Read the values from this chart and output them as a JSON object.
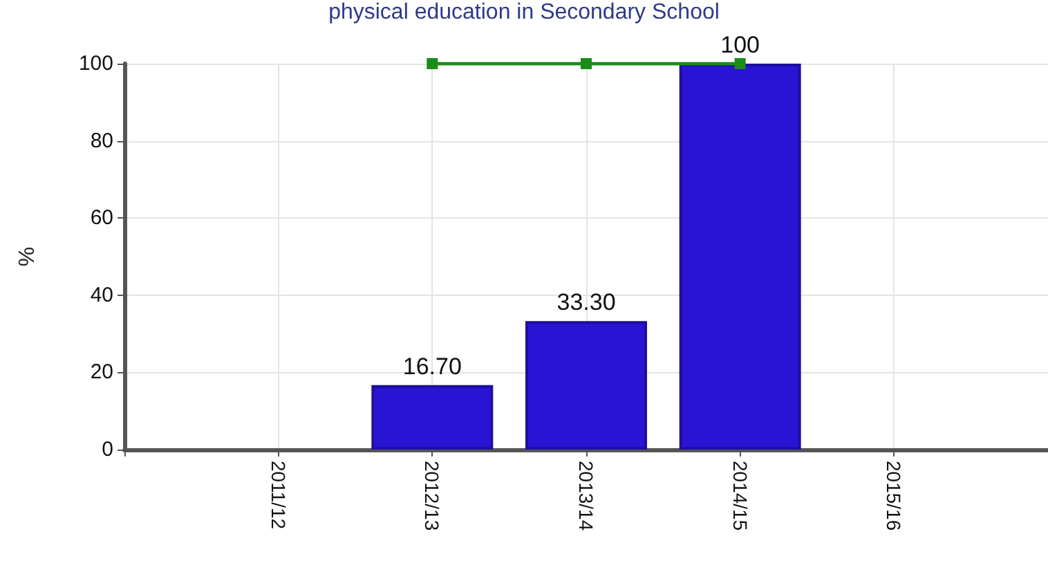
{
  "chart_data": {
    "type": "bar",
    "title": "physical education in Secondary School",
    "ylabel": "%",
    "categories": [
      "2011/12",
      "2012/13",
      "2013/14",
      "2014/15",
      "2015/16"
    ],
    "series": [
      {
        "color": "#2a14d4",
        "values": [
          null,
          16.7,
          33.3,
          100,
          null
        ],
        "value_labels": [
          null,
          "16.70",
          "33.30",
          "100",
          null
        ]
      },
      {
        "type": "line",
        "color": "#1a8c1a",
        "values": [
          null,
          100,
          100,
          100,
          null
        ],
        "marker": "square",
        "line_style": "solid"
      }
    ],
    "ylim": [
      0,
      100
    ],
    "yticks": [
      0,
      20,
      40,
      60,
      80,
      100
    ],
    "grid": true
  }
}
